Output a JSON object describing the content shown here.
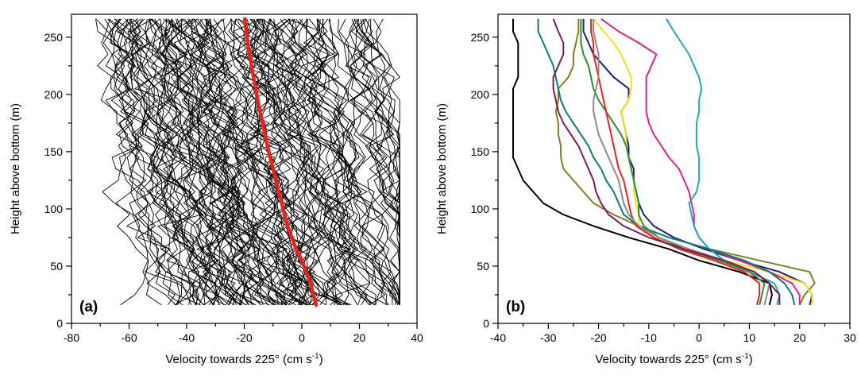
{
  "chart_data": [
    {
      "type": "line",
      "panel_label": "(a)",
      "xlabel_main": "Velocity towards 225° (cm s",
      "xlabel_sup": "-1",
      "xlabel_close": ")",
      "ylabel": "Height above bottom (m)",
      "xlim": [
        -80,
        40
      ],
      "ylim": [
        0,
        270
      ],
      "xticks": [
        "-80",
        "-60",
        "-40",
        "-20",
        "0",
        "20",
        "40"
      ],
      "yticks": [
        "0",
        "50",
        "100",
        "150",
        "200",
        "250"
      ],
      "heights": [
        16,
        25,
        35,
        45,
        55,
        65,
        75,
        85,
        95,
        105,
        115,
        125,
        135,
        145,
        155,
        165,
        175,
        185,
        195,
        205,
        215,
        225,
        235,
        245,
        255,
        266
      ],
      "mean_profile": {
        "color": "#e8231e",
        "x": [
          5,
          4,
          3,
          1.5,
          0,
          -2,
          -3.5,
          -5,
          -6,
          -7,
          -8,
          -9,
          -10,
          -11,
          -12,
          -12.8,
          -13.6,
          -14.5,
          -15.3,
          -16,
          -16.8,
          -17.5,
          -18.2,
          -18.8,
          -19.3,
          -19.8
        ]
      },
      "ensemble": {
        "color": "#000000",
        "count": 150,
        "description_note": ""
      }
    },
    {
      "type": "line",
      "panel_label": "(b)",
      "xlabel_main": "Velocity towards 225° (cm s",
      "xlabel_sup": "-1",
      "xlabel_close": ")",
      "ylabel": "Height above bottom (m)",
      "xlim": [
        -40,
        30
      ],
      "ylim": [
        0,
        270
      ],
      "xticks": [
        "-40",
        "-30",
        "-20",
        "-10",
        "0",
        "10",
        "20",
        "30"
      ],
      "yticks": [
        "0",
        "50",
        "100",
        "150",
        "200",
        "250"
      ],
      "heights": [
        16,
        25,
        35,
        45,
        55,
        65,
        75,
        85,
        95,
        105,
        115,
        125,
        135,
        145,
        155,
        165,
        175,
        185,
        195,
        205,
        215,
        225,
        235,
        245,
        255,
        266
      ],
      "series": [
        {
          "color": "#000000",
          "x": [
            14,
            14.5,
            14,
            8,
            0,
            -6,
            -14,
            -21,
            -27,
            -31,
            -33,
            -35,
            -36,
            -37,
            -37,
            -37,
            -37,
            -37,
            -37,
            -37,
            -36,
            -36,
            -36,
            -36,
            -37,
            -37
          ]
        },
        {
          "color": "#1f1f7a",
          "x": [
            22,
            22.5,
            21,
            16,
            8,
            1,
            -5,
            -9,
            -11,
            -12,
            -12.5,
            -13,
            -13,
            -14,
            -14,
            -14.5,
            -15,
            -15.5,
            -14,
            -14,
            -17,
            -19,
            -21,
            -22,
            -23,
            -23
          ]
        },
        {
          "color": "#808020",
          "x": [
            20,
            21,
            23,
            22,
            12,
            2,
            -6,
            -12,
            -17,
            -21,
            -23,
            -25,
            -27,
            -27.5,
            -27.5,
            -28,
            -28,
            -28.5,
            -28,
            -28,
            -26,
            -25,
            -25,
            -24.5,
            -24,
            -24
          ]
        },
        {
          "color": "#f0e020",
          "x": [
            22.5,
            22.5,
            21,
            14,
            5,
            -3,
            -9,
            -12,
            -12,
            -12.5,
            -13,
            -13,
            -13.5,
            -14,
            -14.5,
            -14.5,
            -15,
            -15.5,
            -14,
            -13.5,
            -13.5,
            -14.5,
            -15.5,
            -17,
            -19,
            -21
          ]
        },
        {
          "color": "#e0208a",
          "x": [
            20,
            20,
            18.5,
            14,
            8,
            2,
            0,
            -1,
            -1,
            -1.5,
            -2,
            -3,
            -4,
            -6,
            -7.5,
            -9,
            -10,
            -10.5,
            -10.5,
            -10.5,
            -10.5,
            -9.5,
            -8.5,
            -12,
            -16,
            -19.5
          ]
        },
        {
          "color": "#20a8c0",
          "x": [
            15.5,
            16,
            15,
            10,
            5,
            2,
            0,
            -1,
            -1.5,
            -2,
            -0.5,
            0,
            0,
            0,
            -0.5,
            -0.5,
            -0.5,
            0,
            0,
            0.5,
            0,
            -1,
            -2,
            -3.5,
            -5,
            -6.5
          ]
        },
        {
          "color": "#0c7a7a",
          "x": [
            19,
            18.5,
            17,
            14,
            9,
            2,
            -6,
            -12,
            -15,
            -16,
            -17,
            -18.5,
            -19.5,
            -21,
            -22,
            -23.5,
            -25,
            -26.5,
            -27.5,
            -28,
            -28.5,
            -29,
            -30,
            -31,
            -32,
            -32
          ]
        },
        {
          "color": "#2e8b2e",
          "x": [
            12,
            12.5,
            13,
            10,
            4,
            -3,
            -8,
            -11,
            -12,
            -12,
            -12.5,
            -13,
            -13.5,
            -14,
            -14.5,
            -15.5,
            -17,
            -18.5,
            -20,
            -21,
            -21.5,
            -22,
            -23,
            -23.5,
            -23.5,
            -23.5
          ]
        },
        {
          "color": "#e8231e",
          "x": [
            11.5,
            12,
            12,
            9,
            3,
            -4,
            -9,
            -12.5,
            -13.5,
            -14,
            -14.5,
            -15,
            -16,
            -16.5,
            -17,
            -17.5,
            -18,
            -18.5,
            -19,
            -19.5,
            -20,
            -20.5,
            -21,
            -21,
            -21.5,
            -21.5
          ]
        },
        {
          "color": "#8a8a8a",
          "x": [
            13,
            13.5,
            14,
            11,
            5,
            -2,
            -8,
            -12,
            -14,
            -15,
            -15.5,
            -16,
            -17,
            -18,
            -19,
            -20,
            -20.5,
            -21,
            -21,
            -20.5,
            -20,
            -20,
            -20,
            -20.5,
            -21,
            -21
          ]
        },
        {
          "color": "#7a1a5a",
          "x": [
            16,
            16,
            14,
            11,
            5,
            -3,
            -10,
            -15,
            -18,
            -19.5,
            -20.5,
            -21,
            -22,
            -23,
            -24,
            -25.5,
            -27,
            -28,
            -28.5,
            -29,
            -29,
            -28,
            -27,
            -27,
            -28,
            -29
          ]
        }
      ]
    }
  ]
}
